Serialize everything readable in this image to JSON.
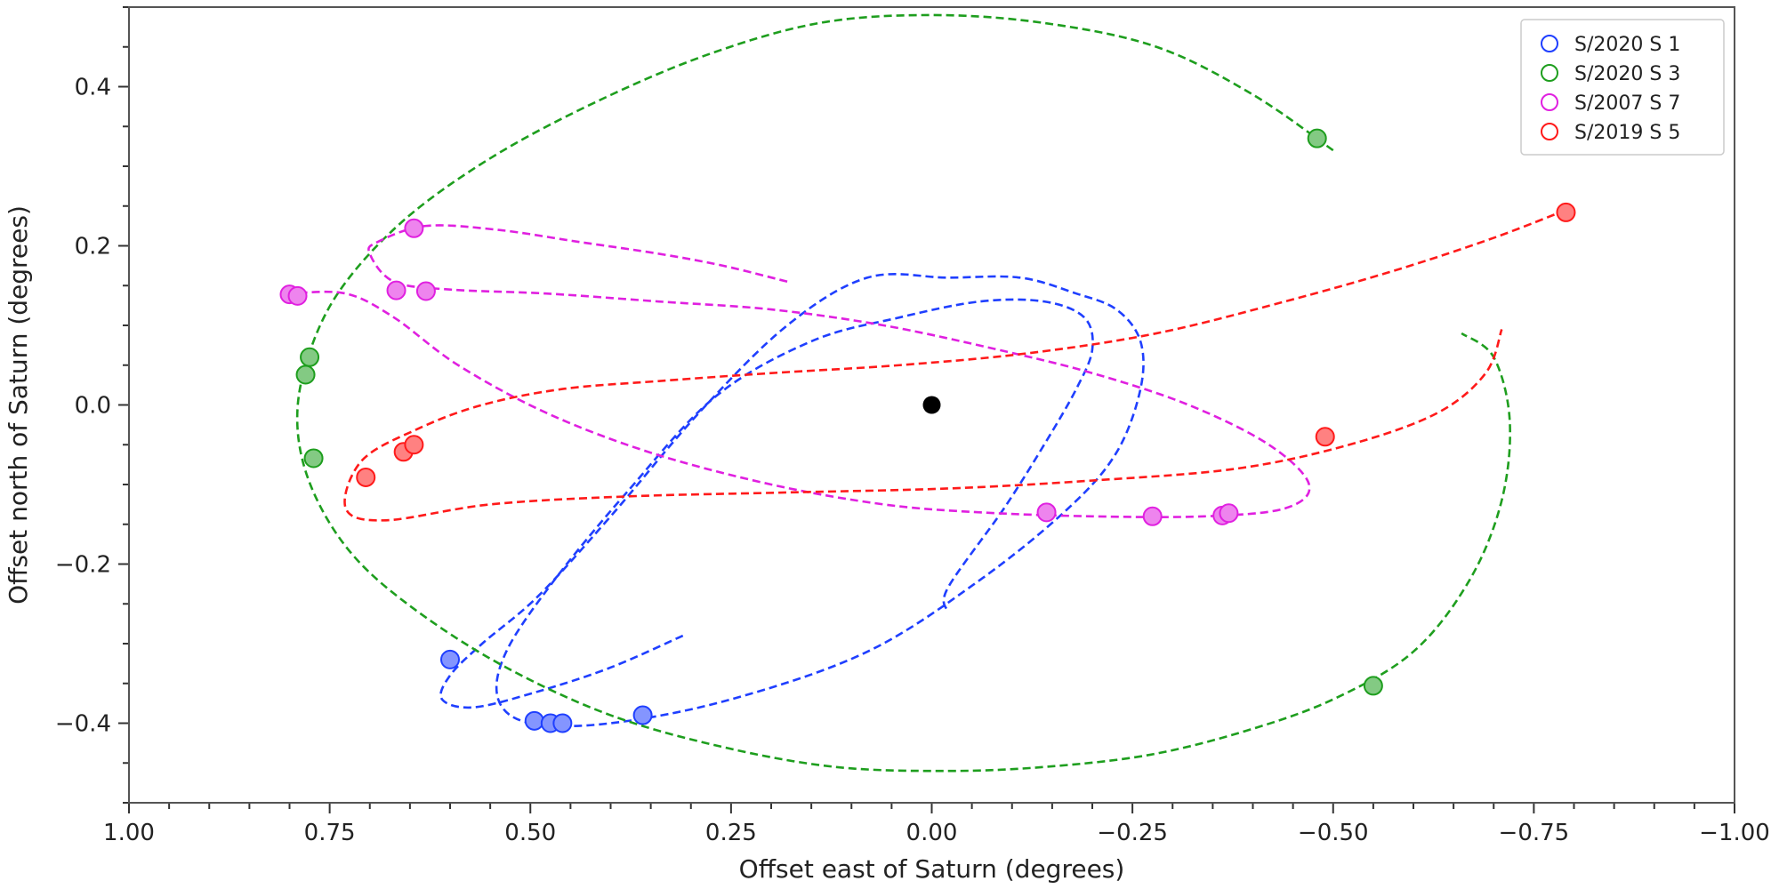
{
  "chart_data": {
    "type": "scatter",
    "title": "",
    "xlabel": "Offset east of Saturn (degrees)",
    "ylabel": "Offset north of Saturn (degrees)",
    "xlim": [
      1.0,
      -1.0
    ],
    "ylim": [
      -0.5,
      0.5
    ],
    "x_ticks": [
      {
        "value": 1.0,
        "label": "1.00"
      },
      {
        "value": 0.75,
        "label": "0.75"
      },
      {
        "value": 0.5,
        "label": "0.50"
      },
      {
        "value": 0.25,
        "label": "0.25"
      },
      {
        "value": 0.0,
        "label": "0.00"
      },
      {
        "value": -0.25,
        "label": "−0.25"
      },
      {
        "value": -0.5,
        "label": "−0.50"
      },
      {
        "value": -0.75,
        "label": "−0.75"
      },
      {
        "value": -1.0,
        "label": "−1.00"
      }
    ],
    "y_ticks": [
      {
        "value": 0.4,
        "label": "0.4"
      },
      {
        "value": 0.2,
        "label": "0.2"
      },
      {
        "value": 0.0,
        "label": "0.0"
      },
      {
        "value": -0.2,
        "label": "−0.2"
      },
      {
        "value": -0.4,
        "label": "−0.4"
      }
    ],
    "grid": false,
    "legend_position": "top-right",
    "center_marker": {
      "x": 0.0,
      "y": 0.0,
      "color": "#000000"
    },
    "series": [
      {
        "name": "S/2020 S 1",
        "color": "#1f3fff",
        "orbit": [
          [
            0.31,
            -0.29
          ],
          [
            0.4,
            -0.33
          ],
          [
            0.49,
            -0.36
          ],
          [
            0.57,
            -0.38
          ],
          [
            0.61,
            -0.37
          ],
          [
            0.6,
            -0.34
          ],
          [
            0.56,
            -0.3
          ],
          [
            0.49,
            -0.24
          ],
          [
            0.4,
            -0.14
          ],
          [
            0.29,
            -0.01
          ],
          [
            0.18,
            0.1
          ],
          [
            0.08,
            0.16
          ],
          [
            -0.02,
            0.16
          ],
          [
            -0.11,
            0.16
          ],
          [
            -0.18,
            0.14
          ],
          [
            -0.23,
            0.12
          ],
          [
            -0.26,
            0.08
          ],
          [
            -0.26,
            0.02
          ],
          [
            -0.23,
            -0.06
          ],
          [
            -0.17,
            -0.13
          ],
          [
            -0.06,
            -0.22
          ],
          [
            0.08,
            -0.31
          ],
          [
            0.25,
            -0.37
          ],
          [
            0.4,
            -0.4
          ],
          [
            0.5,
            -0.4
          ],
          [
            0.54,
            -0.37
          ],
          [
            0.53,
            -0.31
          ],
          [
            0.47,
            -0.22
          ],
          [
            0.38,
            -0.11
          ],
          [
            0.27,
            0.01
          ],
          [
            0.15,
            0.08
          ],
          [
            0.04,
            0.11
          ],
          [
            -0.06,
            0.13
          ],
          [
            -0.14,
            0.13
          ],
          [
            -0.19,
            0.11
          ],
          [
            -0.2,
            0.07
          ],
          [
            -0.18,
            0.02
          ],
          [
            -0.14,
            -0.05
          ],
          [
            -0.09,
            -0.13
          ],
          [
            -0.02,
            -0.23
          ],
          [
            -0.02,
            -0.26
          ]
        ],
        "points": [
          [
            0.6,
            -0.32
          ],
          [
            0.495,
            -0.397
          ],
          [
            0.475,
            -0.4
          ],
          [
            0.46,
            -0.4
          ],
          [
            0.36,
            -0.39
          ]
        ]
      },
      {
        "name": "S/2020 S 3",
        "color": "#1e9e1e",
        "orbit": [
          [
            -0.5,
            0.32
          ],
          [
            -0.4,
            0.39
          ],
          [
            -0.28,
            0.45
          ],
          [
            -0.14,
            0.48
          ],
          [
            0.0,
            0.49
          ],
          [
            0.14,
            0.48
          ],
          [
            0.28,
            0.44
          ],
          [
            0.42,
            0.38
          ],
          [
            0.55,
            0.31
          ],
          [
            0.66,
            0.23
          ],
          [
            0.74,
            0.14
          ],
          [
            0.78,
            0.05
          ],
          [
            0.79,
            -0.03
          ],
          [
            0.77,
            -0.11
          ],
          [
            0.72,
            -0.19
          ],
          [
            0.64,
            -0.26
          ],
          [
            0.53,
            -0.33
          ],
          [
            0.4,
            -0.39
          ],
          [
            0.26,
            -0.43
          ],
          [
            0.12,
            -0.455
          ],
          [
            -0.02,
            -0.46
          ],
          [
            -0.14,
            -0.455
          ],
          [
            -0.27,
            -0.44
          ],
          [
            -0.39,
            -0.41
          ],
          [
            -0.5,
            -0.37
          ],
          [
            -0.6,
            -0.31
          ],
          [
            -0.67,
            -0.22
          ],
          [
            -0.71,
            -0.12
          ],
          [
            -0.72,
            -0.02
          ],
          [
            -0.7,
            0.06
          ],
          [
            -0.66,
            0.09
          ]
        ],
        "points": [
          [
            -0.48,
            0.335
          ],
          [
            0.775,
            0.06
          ],
          [
            0.78,
            0.038
          ],
          [
            0.77,
            -0.067
          ],
          [
            -0.55,
            -0.353
          ]
        ]
      },
      {
        "name": "S/2007 S 7",
        "color": "#e020e0",
        "orbit": [
          [
            0.18,
            0.155
          ],
          [
            0.26,
            0.175
          ],
          [
            0.34,
            0.19
          ],
          [
            0.44,
            0.205
          ],
          [
            0.54,
            0.22
          ],
          [
            0.63,
            0.225
          ],
          [
            0.69,
            0.205
          ],
          [
            0.7,
            0.19
          ],
          [
            0.67,
            0.155
          ],
          [
            0.6,
            0.145
          ],
          [
            0.48,
            0.14
          ],
          [
            0.34,
            0.13
          ],
          [
            0.2,
            0.12
          ],
          [
            0.06,
            0.1
          ],
          [
            -0.08,
            0.07
          ],
          [
            -0.2,
            0.04
          ],
          [
            -0.32,
            0.0
          ],
          [
            -0.42,
            -0.05
          ],
          [
            -0.47,
            -0.1
          ],
          [
            -0.44,
            -0.13
          ],
          [
            -0.34,
            -0.14
          ],
          [
            -0.2,
            -0.14
          ],
          [
            -0.06,
            -0.135
          ],
          [
            0.06,
            -0.125
          ],
          [
            0.2,
            -0.1
          ],
          [
            0.35,
            -0.06
          ],
          [
            0.48,
            -0.01
          ],
          [
            0.59,
            0.05
          ],
          [
            0.67,
            0.11
          ],
          [
            0.73,
            0.14
          ],
          [
            0.8,
            0.14
          ]
        ],
        "points": [
          [
            0.645,
            0.222
          ],
          [
            0.667,
            0.144
          ],
          [
            0.63,
            0.143
          ],
          [
            0.8,
            0.139
          ],
          [
            0.79,
            0.137
          ],
          [
            -0.143,
            -0.135
          ],
          [
            -0.275,
            -0.14
          ],
          [
            -0.362,
            -0.139
          ],
          [
            -0.37,
            -0.136
          ]
        ]
      },
      {
        "name": "S/2019 S 5",
        "color": "#ff1a1a",
        "orbit": [
          [
            -0.79,
            0.245
          ],
          [
            -0.7,
            0.21
          ],
          [
            -0.58,
            0.17
          ],
          [
            -0.44,
            0.13
          ],
          [
            -0.28,
            0.09
          ],
          [
            -0.12,
            0.065
          ],
          [
            0.04,
            0.05
          ],
          [
            0.2,
            0.04
          ],
          [
            0.34,
            0.03
          ],
          [
            0.46,
            0.02
          ],
          [
            0.56,
            0.0
          ],
          [
            0.64,
            -0.03
          ],
          [
            0.71,
            -0.07
          ],
          [
            0.73,
            -0.13
          ],
          [
            0.68,
            -0.145
          ],
          [
            0.55,
            -0.125
          ],
          [
            0.38,
            -0.115
          ],
          [
            0.18,
            -0.11
          ],
          [
            -0.02,
            -0.105
          ],
          [
            -0.2,
            -0.095
          ],
          [
            -0.38,
            -0.08
          ],
          [
            -0.52,
            -0.05
          ],
          [
            -0.63,
            -0.01
          ],
          [
            -0.69,
            0.04
          ],
          [
            -0.71,
            0.095
          ]
        ],
        "points": [
          [
            -0.79,
            0.242
          ],
          [
            0.705,
            -0.091
          ],
          [
            0.658,
            -0.059
          ],
          [
            0.645,
            -0.05
          ],
          [
            -0.49,
            -0.04
          ]
        ]
      }
    ]
  }
}
